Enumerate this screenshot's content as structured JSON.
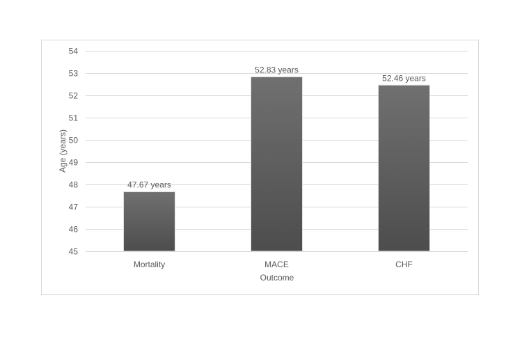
{
  "chart_data": {
    "type": "bar",
    "title": "",
    "xlabel": "Outcome",
    "ylabel": "Age (years)",
    "categories": [
      "Mortality",
      "MACE",
      "CHF"
    ],
    "values": [
      47.67,
      52.83,
      52.46
    ],
    "data_labels": [
      "47.67 years",
      "52.83 years",
      "52.46 years"
    ],
    "ylim": [
      45,
      54
    ],
    "yticks": [
      45,
      46,
      47,
      48,
      49,
      50,
      51,
      52,
      53,
      54
    ],
    "grid": true,
    "legend": "none",
    "bar_color": "#5f5f5f",
    "bar_gradient_top": "#707070",
    "bar_gradient_bottom": "#4d4d4d"
  }
}
